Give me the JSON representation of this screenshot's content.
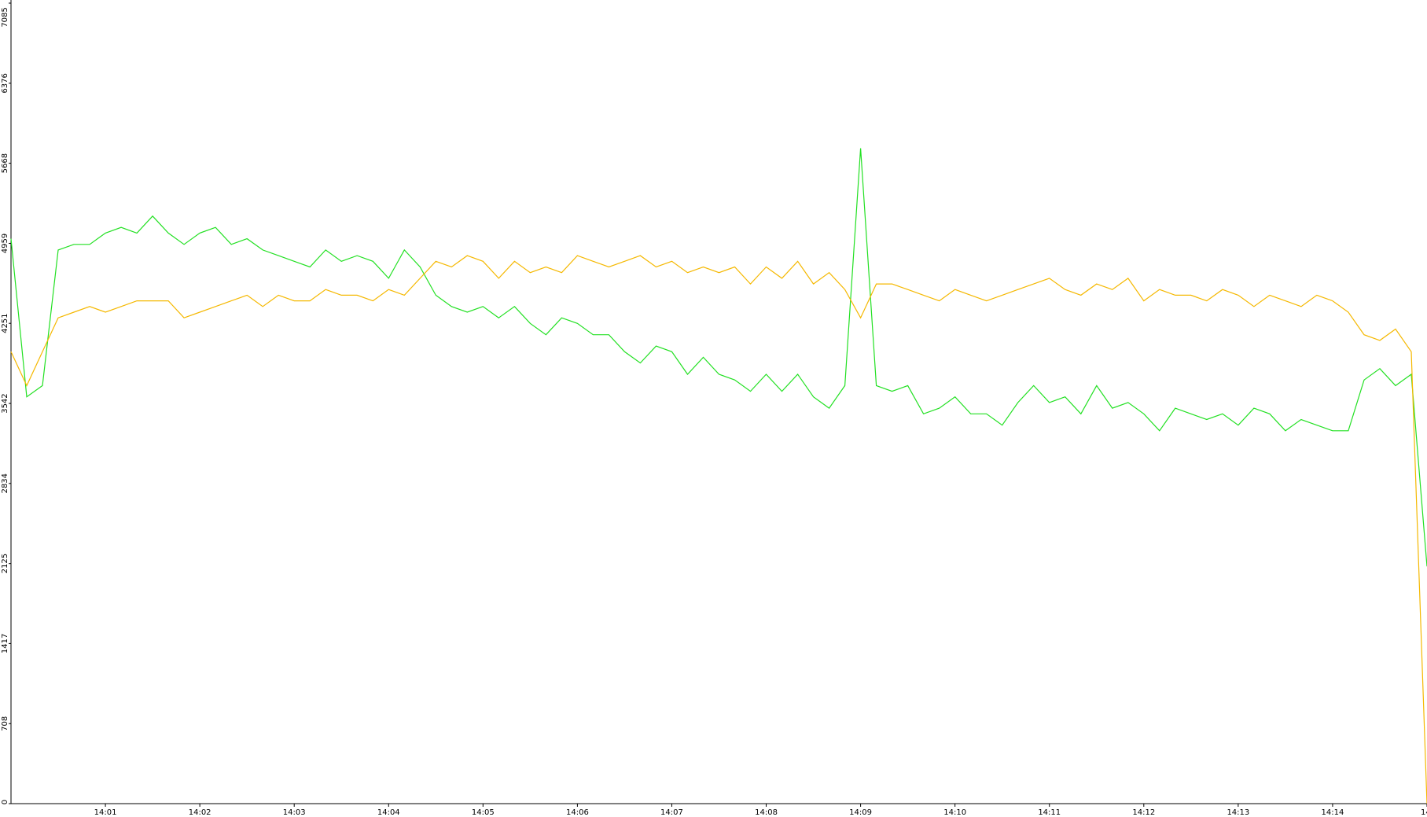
{
  "chart_data": {
    "type": "line",
    "categories": [
      null,
      null,
      null,
      null,
      null,
      null,
      "14:01",
      null,
      null,
      null,
      null,
      null,
      "14:02",
      null,
      null,
      null,
      null,
      null,
      "14:03",
      null,
      null,
      null,
      null,
      null,
      "14:04",
      null,
      null,
      null,
      null,
      null,
      "14:05",
      null,
      null,
      null,
      null,
      null,
      "14:06",
      null,
      null,
      null,
      null,
      null,
      "14:07",
      null,
      null,
      null,
      null,
      null,
      "14:08",
      null,
      null,
      null,
      null,
      null,
      "14:09",
      null,
      null,
      null,
      null,
      null,
      "14:10",
      null,
      null,
      null,
      null,
      null,
      "14:11",
      null,
      null,
      null,
      null,
      null,
      "14:12",
      null,
      null,
      null,
      null,
      null,
      "14:13",
      null,
      null,
      null,
      null,
      null,
      "14:14",
      null,
      null,
      null,
      null,
      null,
      "14:"
    ],
    "series": [
      {
        "color": "#22e022",
        "values": [
          5000,
          3600,
          3700,
          4900,
          4950,
          4950,
          5050,
          5100,
          5050,
          5200,
          5050,
          4950,
          5050,
          5100,
          4950,
          5000,
          4900,
          4850,
          4800,
          4750,
          4900,
          4800,
          4850,
          4800,
          4650,
          4900,
          4750,
          4500,
          4400,
          4350,
          4400,
          4300,
          4400,
          4250,
          4150,
          4300,
          4250,
          4150,
          4150,
          4000,
          3900,
          4050,
          4000,
          3800,
          3950,
          3800,
          3750,
          3650,
          3800,
          3650,
          3800,
          3600,
          3500,
          3700,
          5800,
          3700,
          3650,
          3700,
          3450,
          3500,
          3600,
          3450,
          3450,
          3350,
          3550,
          3700,
          3550,
          3600,
          3450,
          3700,
          3500,
          3550,
          3450,
          3300,
          3500,
          3450,
          3400,
          3450,
          3350,
          3500,
          3450,
          3300,
          3400,
          3350,
          3300,
          3300,
          3750,
          3850,
          3700,
          3800,
          2100
        ]
      },
      {
        "color": "#f5b800",
        "values": [
          4000,
          3700,
          4000,
          4300,
          4350,
          4400,
          4350,
          4400,
          4450,
          4450,
          4450,
          4300,
          4350,
          4400,
          4450,
          4500,
          4400,
          4500,
          4450,
          4450,
          4550,
          4500,
          4500,
          4450,
          4550,
          4500,
          4650,
          4800,
          4750,
          4850,
          4800,
          4650,
          4800,
          4700,
          4750,
          4700,
          4850,
          4800,
          4750,
          4800,
          4850,
          4750,
          4800,
          4700,
          4750,
          4700,
          4750,
          4600,
          4750,
          4650,
          4800,
          4600,
          4700,
          4550,
          4300,
          4600,
          4600,
          4550,
          4500,
          4450,
          4550,
          4500,
          4450,
          4500,
          4550,
          4600,
          4650,
          4550,
          4500,
          4600,
          4550,
          4650,
          4450,
          4550,
          4500,
          4500,
          4450,
          4550,
          4500,
          4400,
          4500,
          4450,
          4400,
          4500,
          4450,
          4350,
          4150,
          4100,
          4200,
          4000,
          0
        ]
      }
    ],
    "ylim": [
      0,
      7085
    ],
    "yticks": [
      0,
      708,
      1417,
      2125,
      2834,
      3542,
      4251,
      4959,
      5668,
      6376,
      7085
    ]
  }
}
